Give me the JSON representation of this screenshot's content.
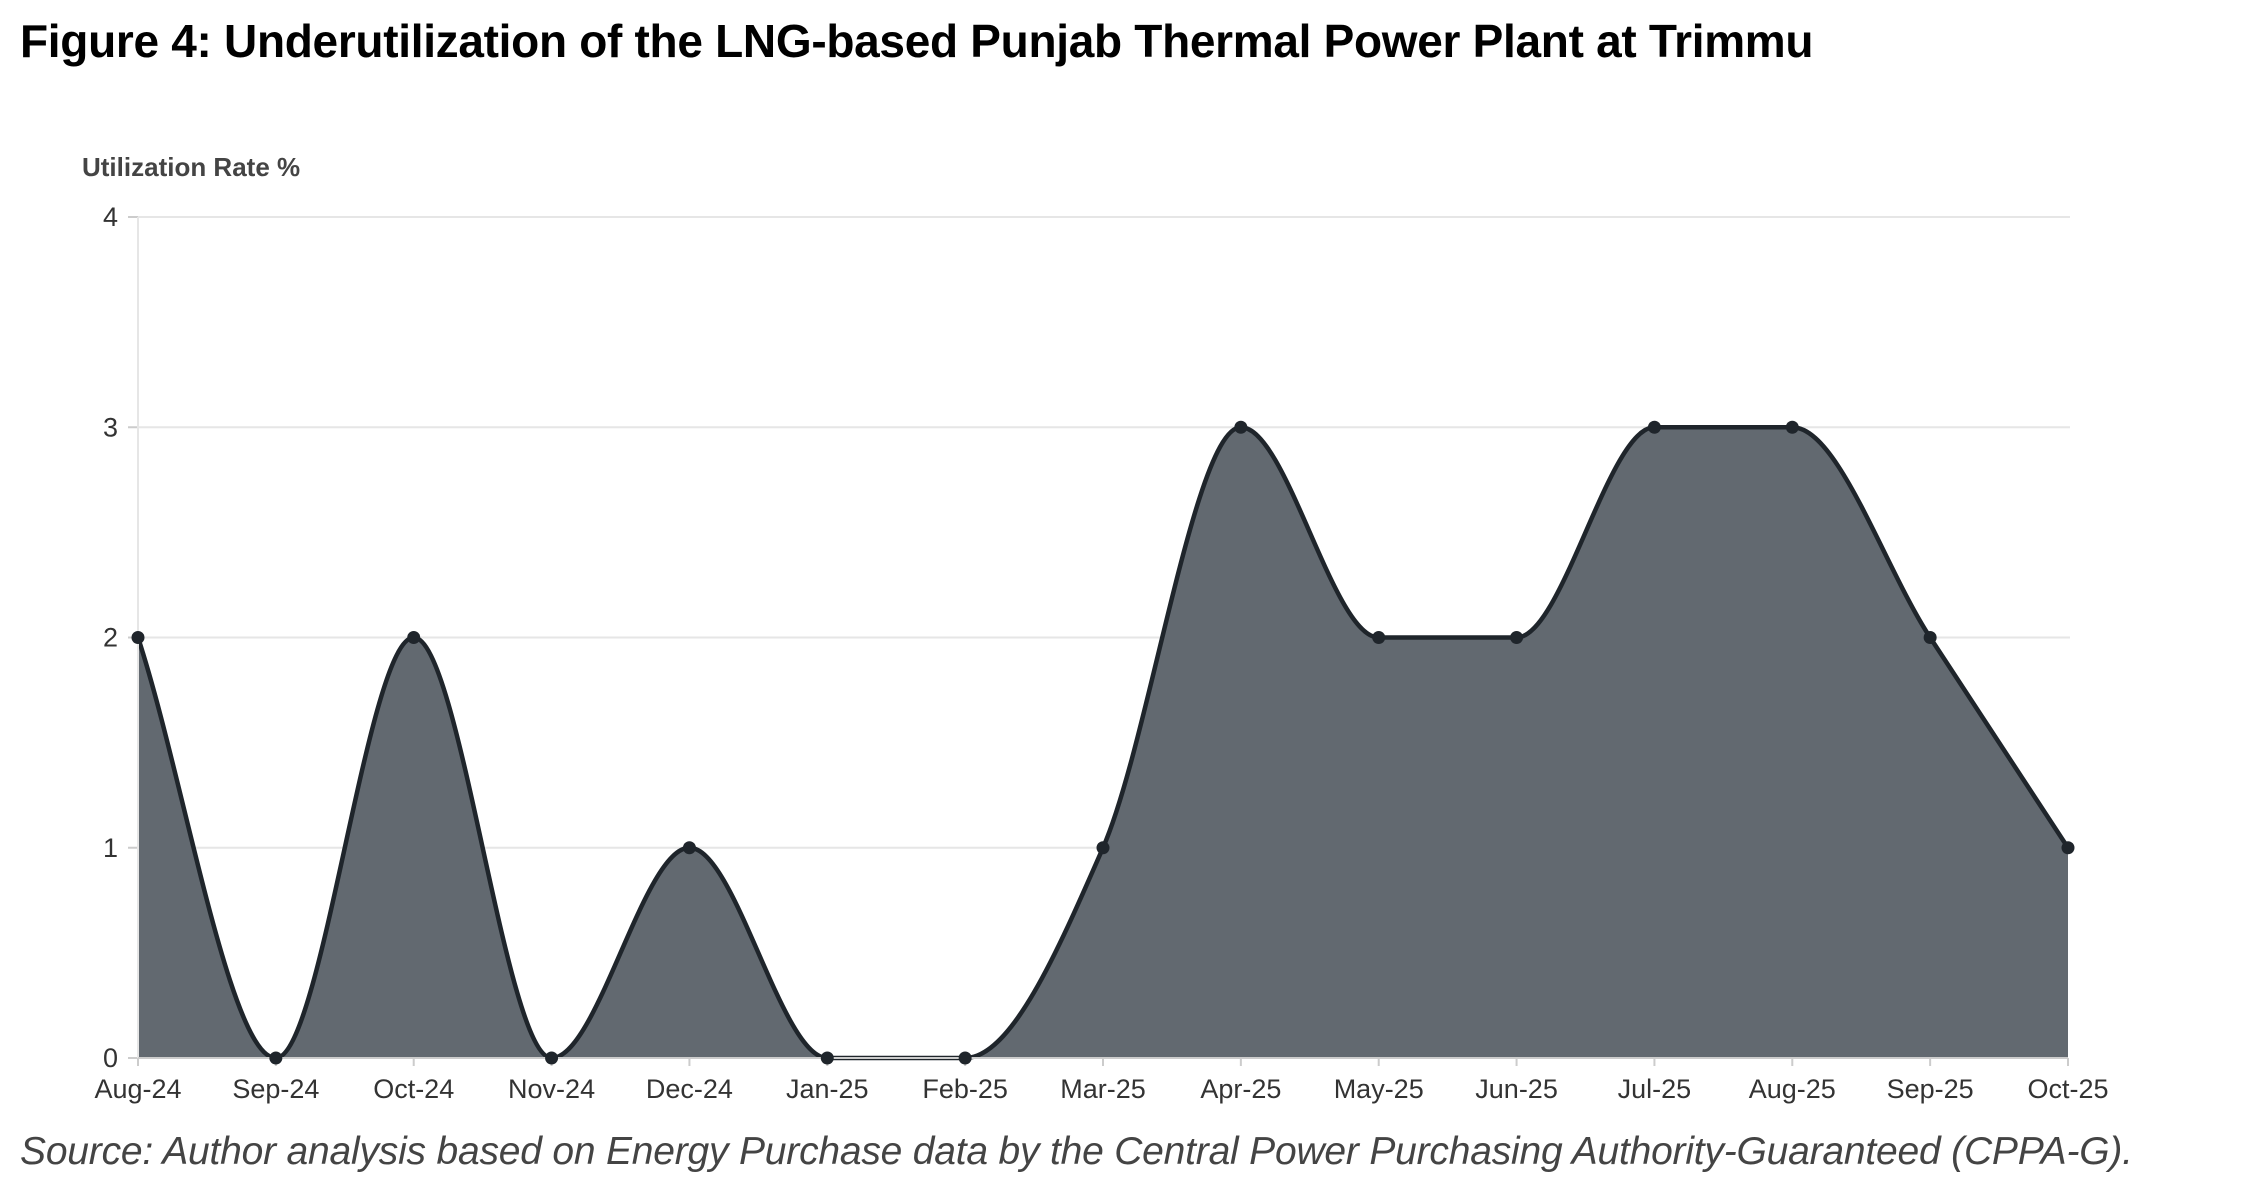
{
  "figure": {
    "title": "Figure 4: Underutilization of the LNG-based Punjab Thermal Power Plant at Trimmu",
    "source": "Source: Author analysis based on Energy Purchase data by the Central Power Purchasing Authority-Guaranteed (CPPA-G)."
  },
  "colors": {
    "area_fill": "#626970",
    "line": "#1f252b",
    "point": "#1f252b",
    "grid": "#e6e6e6",
    "axis": "#cccccc"
  },
  "chart_data": {
    "type": "area",
    "title": "Figure 4: Underutilization of the LNG-based Punjab Thermal Power Plant at Trimmu",
    "xlabel": "",
    "ylabel": "Utilization Rate %",
    "ylim": [
      0,
      4
    ],
    "yticks": [
      "0",
      "1",
      "2",
      "3",
      "4"
    ],
    "grid": true,
    "curve": "smooth",
    "categories": [
      "Aug-24",
      "Sep-24",
      "Oct-24",
      "Nov-24",
      "Dec-24",
      "Jan-25",
      "Feb-25",
      "Mar-25",
      "Apr-25",
      "May-25",
      "Jun-25",
      "Jul-25",
      "Aug-25",
      "Sep-25",
      "Oct-25"
    ],
    "series": [
      {
        "name": "Utilization Rate %",
        "values": [
          2,
          0,
          2,
          0,
          1,
          0,
          0,
          1,
          3,
          2,
          2,
          3,
          3,
          2,
          1
        ]
      }
    ]
  }
}
